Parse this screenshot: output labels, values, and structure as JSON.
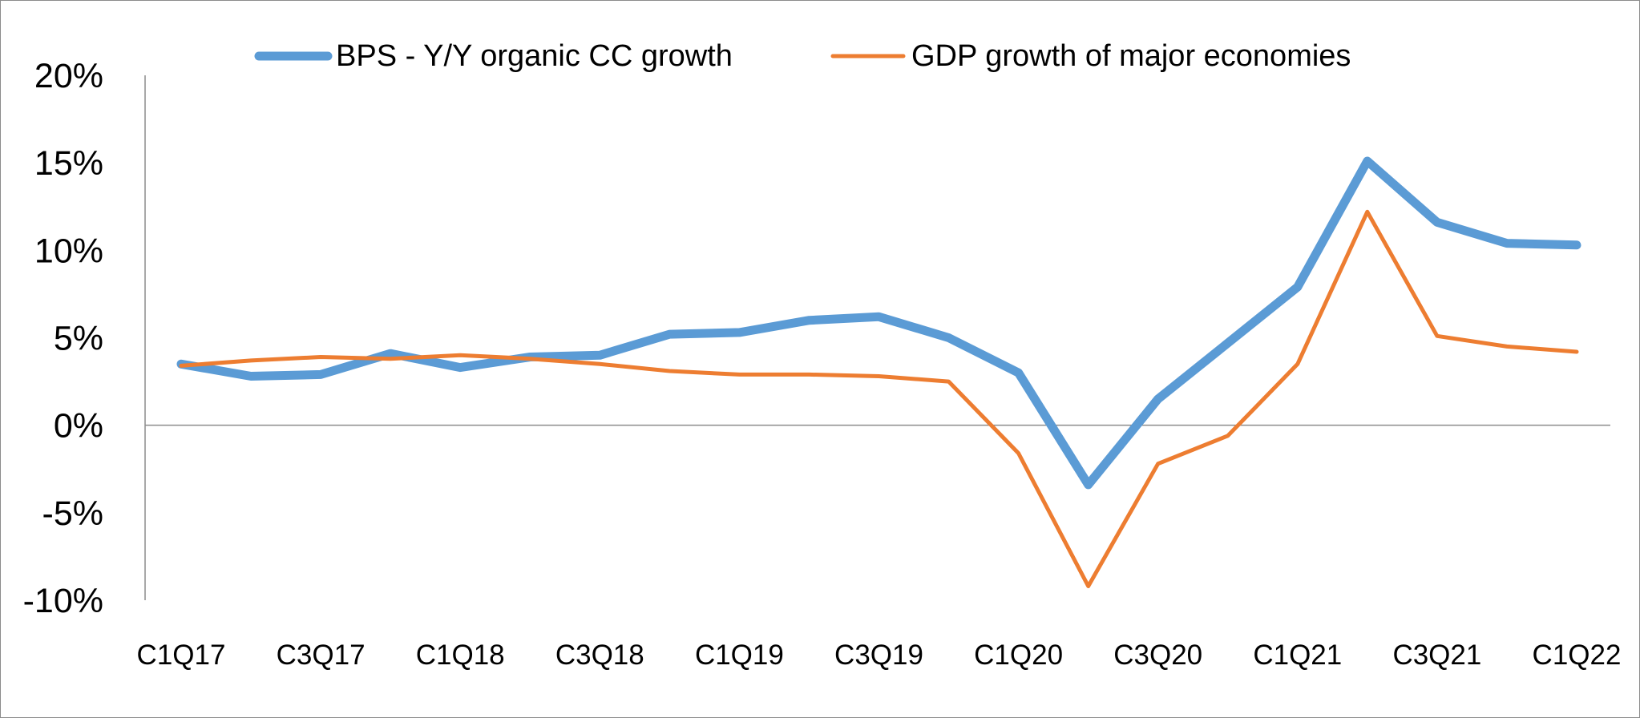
{
  "chart_data": {
    "type": "line",
    "categories": [
      "C1Q17",
      "C2Q17",
      "C3Q17",
      "C4Q17",
      "C1Q18",
      "C2Q18",
      "C3Q18",
      "C4Q18",
      "C1Q19",
      "C2Q19",
      "C3Q19",
      "C4Q19",
      "C1Q20",
      "C2Q20",
      "C3Q20",
      "C4Q20",
      "C1Q21",
      "C2Q21",
      "C3Q21",
      "C4Q21",
      "C1Q22"
    ],
    "x_tick_labels": [
      "C1Q17",
      "C3Q17",
      "C1Q18",
      "C3Q18",
      "C1Q19",
      "C3Q19",
      "C1Q20",
      "C3Q20",
      "C1Q21",
      "C3Q21",
      "C1Q22"
    ],
    "y_tick_labels": [
      "20%",
      "15%",
      "10%",
      "5%",
      "0%",
      "-5%",
      "-10%"
    ],
    "ylim": [
      -10,
      20
    ],
    "y_unit": "%",
    "grid": false,
    "legend_position": "top",
    "series": [
      {
        "name": "BPS - Y/Y organic CC growth",
        "color": "#5b9bd5",
        "values": [
          3.5,
          2.8,
          2.9,
          4.1,
          3.3,
          3.9,
          4.0,
          5.2,
          5.3,
          6.0,
          6.2,
          5.0,
          3.0,
          -3.4,
          1.5,
          4.7,
          7.9,
          15.1,
          11.6,
          10.4,
          10.3
        ]
      },
      {
        "name": "GDP growth of major economies",
        "color": "#ed7d31",
        "values": [
          3.4,
          3.7,
          3.9,
          3.8,
          4.0,
          3.8,
          3.5,
          3.1,
          2.9,
          2.9,
          2.8,
          2.5,
          -1.6,
          -9.2,
          -2.2,
          -0.6,
          3.5,
          12.2,
          5.1,
          4.5,
          4.2
        ]
      }
    ]
  }
}
